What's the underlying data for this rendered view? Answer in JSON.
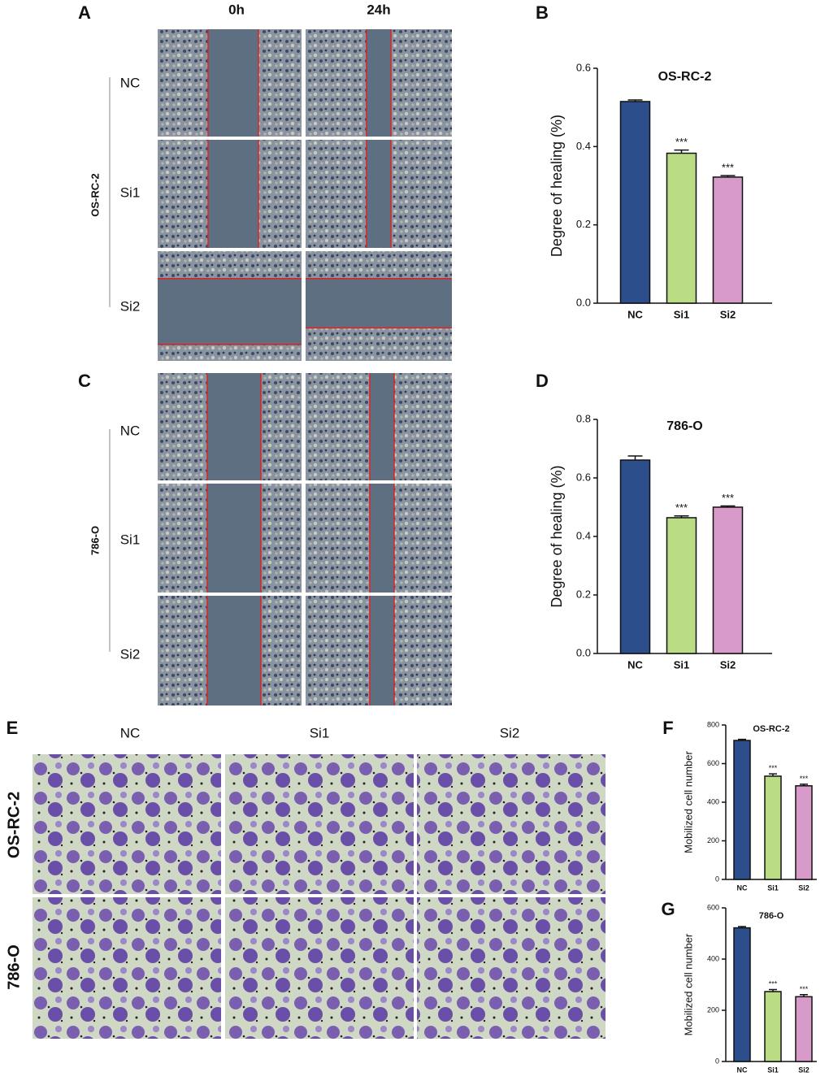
{
  "panels": {
    "A": {
      "letter": "A",
      "columns": [
        "0h",
        "24h"
      ],
      "rows": [
        "NC",
        "Si1",
        "Si2"
      ],
      "group": "OS-RC-2"
    },
    "C": {
      "letter": "C",
      "rows": [
        "NC",
        "Si1",
        "Si2"
      ],
      "group": "786-O"
    },
    "E": {
      "letter": "E",
      "columns": [
        "NC",
        "Si1",
        "Si2"
      ],
      "rows": [
        "OS-RC-2",
        "786-O"
      ]
    }
  },
  "chart_data": [
    {
      "type": "bar",
      "panel": "B",
      "title": "OS-RC-2",
      "ylabel": "Degree of healing (%)",
      "categories": [
        "NC",
        "Si1",
        "Si2"
      ],
      "values": [
        0.515,
        0.383,
        0.322
      ],
      "errors": [
        0.004,
        0.008,
        0.004
      ],
      "annotations": [
        null,
        "***",
        "***"
      ],
      "colors": [
        "#2c4f8c",
        "#b9dc85",
        "#d79ac9"
      ],
      "ylim": [
        0,
        0.6
      ],
      "yticks": [
        {
          "value": 0,
          "label": "0.0"
        },
        0.2,
        0.4,
        0.6
      ]
    },
    {
      "type": "bar",
      "panel": "D",
      "title": "786-O",
      "ylabel": "Degree of healing (%)",
      "categories": [
        "NC",
        "Si1",
        "Si2"
      ],
      "values": [
        0.661,
        0.464,
        0.5
      ],
      "errors": [
        0.014,
        0.006,
        0.004
      ],
      "annotations": [
        null,
        "***",
        "***"
      ],
      "colors": [
        "#2c4f8c",
        "#b9dc85",
        "#d79ac9"
      ],
      "ylim": [
        0,
        0.8
      ],
      "yticks": [
        {
          "value": 0,
          "label": "0.0"
        },
        0.2,
        0.4,
        0.6,
        0.8
      ]
    },
    {
      "type": "bar",
      "panel": "F",
      "title": "OS-RC-2",
      "ylabel": "Mobilized cell number",
      "categories": [
        "NC",
        "Si1",
        "Si2"
      ],
      "values": [
        720,
        535,
        485
      ],
      "errors": [
        6,
        12,
        8
      ],
      "annotations": [
        null,
        "***",
        "***"
      ],
      "colors": [
        "#2c4f8c",
        "#b9dc85",
        "#d79ac9"
      ],
      "ylim": [
        0,
        800
      ],
      "yticks": [
        0,
        200,
        400,
        600,
        800
      ]
    },
    {
      "type": "bar",
      "panel": "G",
      "title": "786-O",
      "ylabel": "Mobilized cell number",
      "categories": [
        "NC",
        "Si1",
        "Si2"
      ],
      "values": [
        522,
        273,
        253
      ],
      "errors": [
        5,
        8,
        8
      ],
      "annotations": [
        null,
        "***",
        "***"
      ],
      "colors": [
        "#2c4f8c",
        "#b9dc85",
        "#d79ac9"
      ],
      "ylim": [
        0,
        600
      ],
      "yticks": [
        0,
        200,
        400,
        600
      ]
    }
  ]
}
